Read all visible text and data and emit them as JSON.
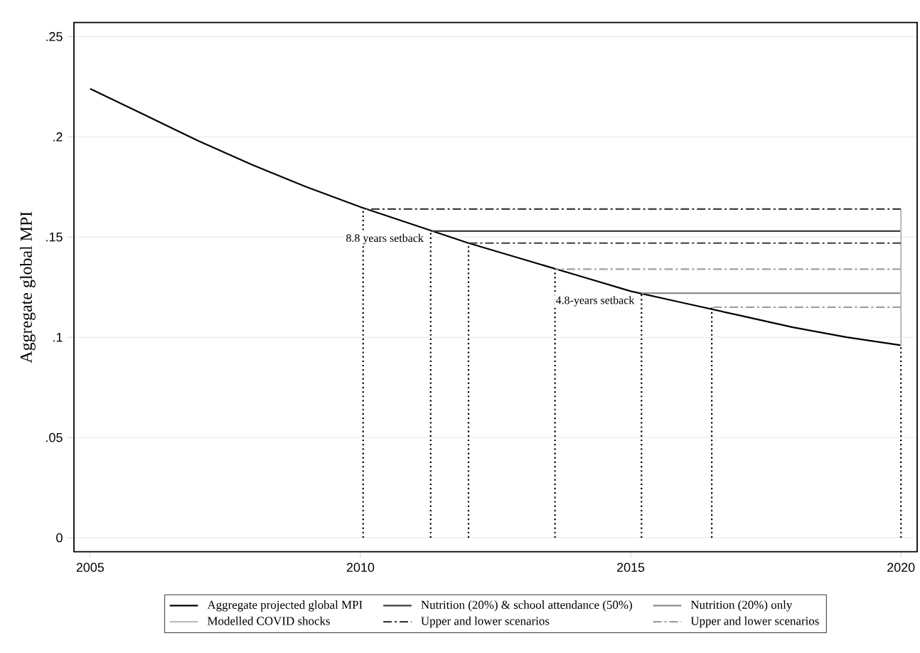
{
  "chart_data": {
    "type": "line",
    "ylabel": "Aggregate global MPI",
    "xlim": [
      2004.7,
      2020.3
    ],
    "xticks": [
      2005,
      2010,
      2015,
      2020
    ],
    "ylim": [
      -0.007,
      0.257
    ],
    "yticks": [
      0,
      {
        "value": 0.05,
        "label": ".05"
      },
      {
        "value": 0.1,
        "label": ".1"
      },
      {
        "value": 0.15,
        "label": ".15"
      },
      {
        "value": 0.2,
        "label": ".2"
      },
      {
        "value": 0.25,
        "label": ".25"
      }
    ],
    "grid": "y",
    "legend": "bottom",
    "series": [
      {
        "name": "Aggregate projected global MPI",
        "color": "#000000",
        "line_style": "solid",
        "x": [
          2005,
          2006,
          2007,
          2008,
          2009,
          2010,
          2011,
          2012,
          2013,
          2014,
          2015,
          2016,
          2017,
          2018,
          2019,
          2020
        ],
        "values": [
          0.224,
          0.211,
          0.198,
          0.186,
          0.175,
          0.165,
          0.156,
          0.147,
          0.139,
          0.131,
          0.123,
          0.117,
          0.111,
          0.105,
          0.1,
          0.096
        ]
      },
      {
        "name": "Nutrition (20%) & school attendance (50%)",
        "color": "#3c3c3c",
        "line_style": "solid",
        "x": [
          2020,
          2011.3
        ],
        "values": [
          0.153,
          0.153
        ]
      },
      {
        "name": "Nutrition (20%) only",
        "color": "#8c8c8c",
        "line_style": "solid",
        "x": [
          2020,
          2015.2
        ],
        "values": [
          0.122,
          0.122
        ]
      },
      {
        "name": "Modelled COVID shocks",
        "color": "#bdbdbd",
        "line_style": "solid",
        "x": [
          2020,
          2020
        ],
        "values": [
          0.096,
          0.164
        ]
      },
      {
        "name": "Upper and lower scenarios",
        "color": "#3c3c3c",
        "line_style": "dashdot",
        "x": [
          2020,
          2010.05
        ],
        "values": [
          0.164,
          0.164
        ]
      },
      {
        "name": "Upper and lower scenarios",
        "color": "#a0a0a0",
        "line_style": "dashdot",
        "x": [
          2020,
          2013.6
        ],
        "values": [
          0.134,
          0.134
        ]
      },
      {
        "color": "#3c3c3c",
        "line_style": "dashdot",
        "x": [
          2020,
          2012
        ],
        "values": [
          0.147,
          0.147
        ]
      },
      {
        "color": "#a0a0a0",
        "line_style": "dashdot",
        "x": [
          2020,
          2016.5
        ],
        "values": [
          0.115,
          0.115
        ]
      },
      {
        "color": "#000000",
        "line_style": "dotted",
        "x": [
          2010.05,
          2010.05
        ],
        "values": [
          0,
          0.164
        ]
      },
      {
        "color": "#000000",
        "line_style": "dotted",
        "x": [
          2011.3,
          2011.3
        ],
        "values": [
          0,
          0.153
        ]
      },
      {
        "color": "#000000",
        "line_style": "dotted",
        "x": [
          2012,
          2012
        ],
        "values": [
          0,
          0.147
        ]
      },
      {
        "color": "#000000",
        "line_style": "dotted",
        "x": [
          2013.6,
          2013.6
        ],
        "values": [
          0,
          0.134
        ]
      },
      {
        "color": "#000000",
        "line_style": "dotted",
        "x": [
          2015.2,
          2015.2
        ],
        "values": [
          0,
          0.122
        ]
      },
      {
        "color": "#000000",
        "line_style": "dotted",
        "x": [
          2016.5,
          2016.5
        ],
        "values": [
          0,
          0.115
        ]
      },
      {
        "color": "#000000",
        "line_style": "dotted",
        "x": [
          2020,
          2020
        ],
        "values": [
          0,
          0.096
        ]
      }
    ],
    "annotations": [
      {
        "text": "8.8 years setback",
        "x": 2011.2,
        "y": 0.149
      },
      {
        "text": "4.8-years setback",
        "x": 2015.1,
        "y": 0.118
      }
    ]
  }
}
